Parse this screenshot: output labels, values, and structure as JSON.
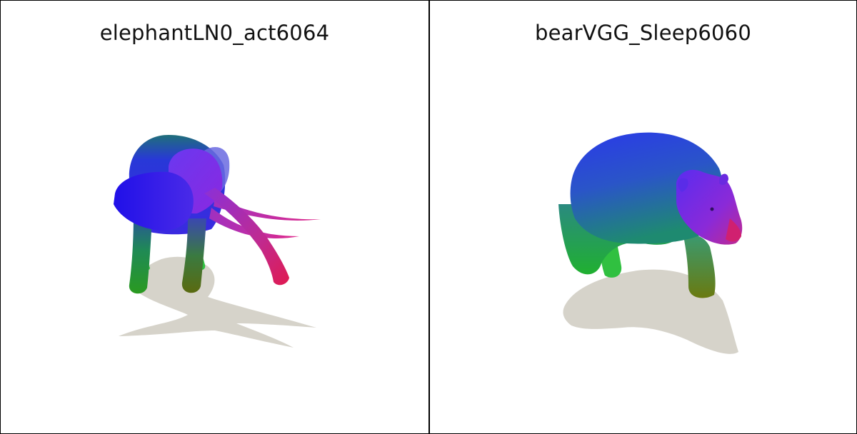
{
  "panels": [
    {
      "title": "elephantLN0_act6064",
      "subject": "elephant-render"
    },
    {
      "title": "bearVGG_Sleep6060",
      "subject": "bear-render"
    }
  ],
  "colors": {
    "border": "#000000",
    "shadow": "#d6d3ca",
    "blue": "#2a1fe0",
    "violet": "#7a2cf0",
    "magenta": "#d0206a",
    "green": "#25b82a",
    "olive": "#5a6a10"
  }
}
